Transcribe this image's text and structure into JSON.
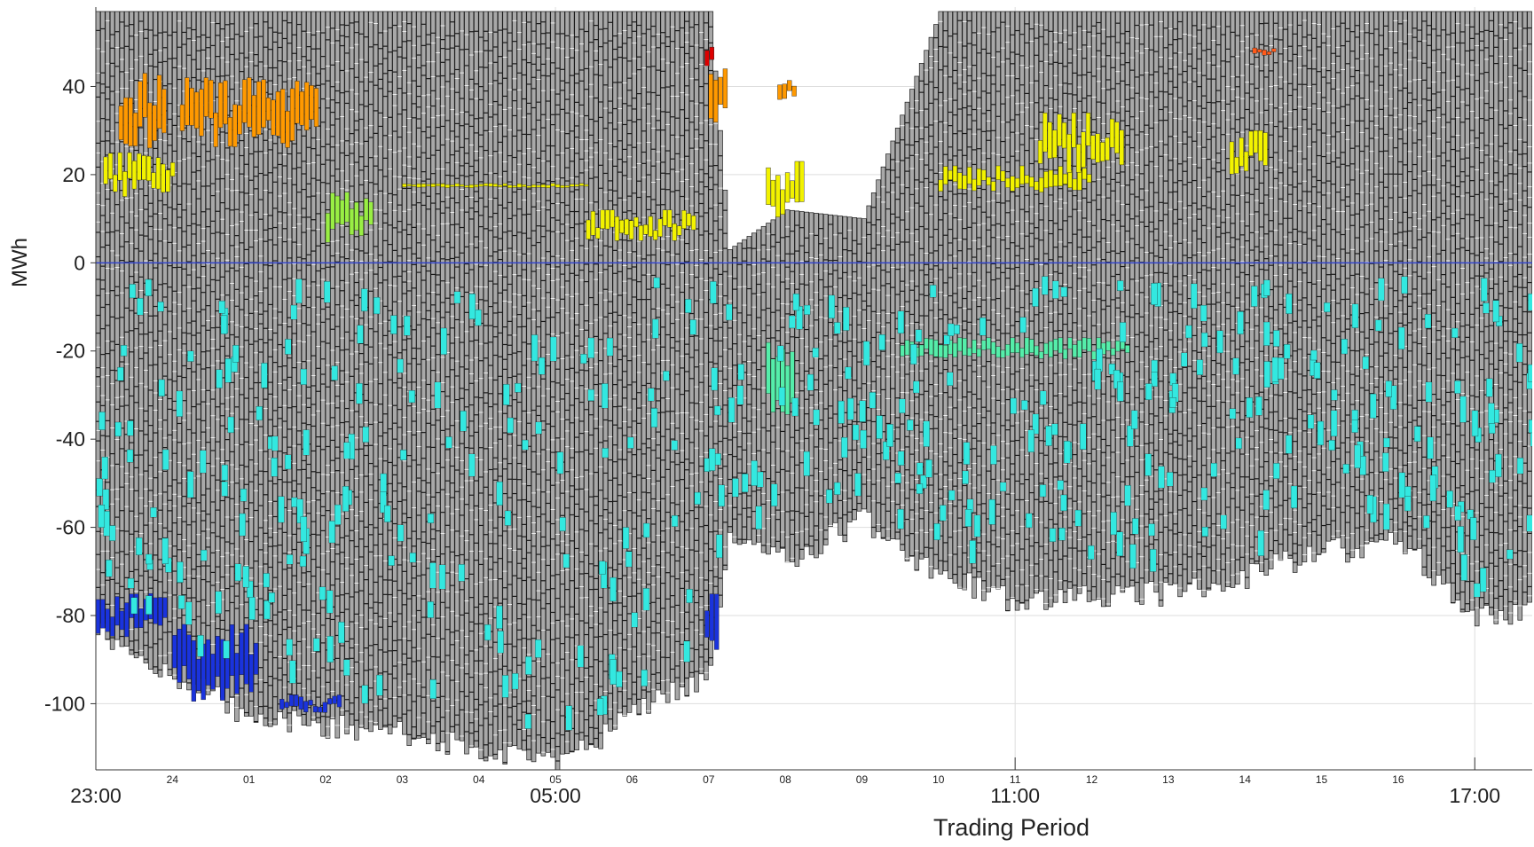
{
  "chart_data": {
    "type": "bar",
    "title": "",
    "xlabel": "Trading Period",
    "ylabel": "MWh",
    "ylim": [
      -115,
      58
    ],
    "y_ticks": [
      40,
      20,
      0,
      -20,
      -40,
      -60,
      -80,
      -100
    ],
    "x_hour_labels": [
      "23:00",
      "05:00",
      "11:00",
      "17:00"
    ],
    "x_period_labels": [
      "24",
      "01",
      "02",
      "03",
      "04",
      "05",
      "06",
      "07",
      "08",
      "09",
      "10",
      "11",
      "12",
      "13",
      "14",
      "15",
      "16"
    ],
    "x_range_hours": [
      23,
      41.75
    ],
    "grid": true,
    "legend": "none",
    "colors": {
      "base": "#a8a8a8",
      "outline": "#1a1a1a",
      "sell_high": "#ff9900",
      "sell_mid": "#f2f200",
      "sell_low": "#99ee44",
      "sell_extreme": "#dd0000",
      "sell_orange_red": "#ff5a1a",
      "buy_cyan": "#33e8e0",
      "buy_green": "#55eeaa",
      "buy_deep": "#1a33dd",
      "zero_line": "#3344cc"
    },
    "envelope": {
      "period_hours": [
        23.0,
        24.0,
        25.0,
        26.0,
        27.0,
        28.0,
        29.0,
        30.0,
        31.0,
        31.25,
        32.0,
        33.0,
        34.0,
        35.0,
        36.0,
        37.0,
        38.0,
        39.0,
        39.5,
        40.0,
        41.0,
        41.75
      ],
      "top_mwh": [
        57,
        57,
        57,
        57,
        57,
        57,
        57,
        57,
        57,
        3,
        12,
        10,
        57,
        57,
        57,
        57,
        57,
        57,
        57,
        57,
        57,
        57
      ],
      "bottom_mwh": [
        -80,
        -90,
        -100,
        -102,
        -104,
        -107,
        -110,
        -100,
        -90,
        -58,
        -65,
        -55,
        -68,
        -74,
        -72,
        -72,
        -68,
        -62,
        -62,
        -60,
        -78,
        -75
      ]
    },
    "highlight_series": [
      {
        "color": "sell_high",
        "x_hours": [
          23.3,
          23.9
        ],
        "mwh_range": [
          25,
          43
        ]
      },
      {
        "color": "sell_high",
        "x_hours": [
          24.1,
          25.9
        ],
        "mwh_range": [
          26,
          42
        ]
      },
      {
        "color": "sell_mid",
        "x_hours": [
          23.1,
          24.0
        ],
        "mwh_range": [
          15,
          25
        ]
      },
      {
        "color": "sell_low",
        "x_hours": [
          26.0,
          26.6
        ],
        "mwh_range": [
          4,
          16
        ]
      },
      {
        "color": "sell_mid",
        "x_hours": [
          27.0,
          29.4
        ],
        "mwh_range": [
          17,
          18
        ]
      },
      {
        "color": "sell_mid",
        "x_hours": [
          29.4,
          30.8
        ],
        "mwh_range": [
          5,
          12
        ]
      },
      {
        "color": "sell_extreme",
        "x_hours": [
          30.95,
          31.05
        ],
        "mwh_range": [
          44,
          53
        ]
      },
      {
        "color": "sell_high",
        "x_hours": [
          31.0,
          31.25
        ],
        "mwh_range": [
          30,
          44
        ]
      },
      {
        "color": "sell_mid",
        "x_hours": [
          31.75,
          32.2
        ],
        "mwh_range": [
          10,
          23
        ]
      },
      {
        "color": "sell_high",
        "x_hours": [
          31.9,
          32.1
        ],
        "mwh_range": [
          37,
          42
        ]
      },
      {
        "color": "sell_mid",
        "x_hours": [
          34.0,
          36.0
        ],
        "mwh_range": [
          16,
          22
        ]
      },
      {
        "color": "sell_mid",
        "x_hours": [
          35.3,
          36.4
        ],
        "mwh_range": [
          20,
          34
        ]
      },
      {
        "color": "sell_mid",
        "x_hours": [
          37.8,
          38.3
        ],
        "mwh_range": [
          20,
          30
        ]
      },
      {
        "color": "sell_orange_red",
        "x_hours": [
          38.1,
          38.4
        ],
        "mwh_range": [
          47,
          49
        ]
      },
      {
        "color": "buy_deep",
        "x_hours": [
          23.0,
          23.9
        ],
        "mwh_range": [
          -85,
          -75
        ]
      },
      {
        "color": "buy_deep",
        "x_hours": [
          24.0,
          25.1
        ],
        "mwh_range": [
          -100,
          -82
        ]
      },
      {
        "color": "buy_deep",
        "x_hours": [
          25.4,
          26.2
        ],
        "mwh_range": [
          -102,
          -98
        ]
      },
      {
        "color": "buy_deep",
        "x_hours": [
          30.95,
          31.1
        ],
        "mwh_range": [
          -88,
          -72
        ]
      },
      {
        "color": "buy_green",
        "x_hours": [
          31.75,
          32.1
        ],
        "mwh_range": [
          -36,
          -18
        ]
      },
      {
        "color": "buy_green",
        "x_hours": [
          33.5,
          36.5
        ],
        "mwh_range": [
          -22,
          -17
        ]
      }
    ]
  }
}
